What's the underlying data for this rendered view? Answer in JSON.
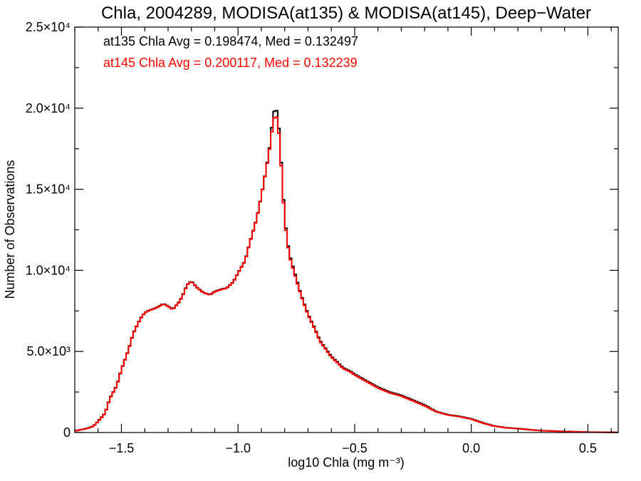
{
  "chart_data": {
    "type": "line",
    "step": true,
    "title": "Chla, 2004289, MODISA(at135) & MODISA(at145), Deep−Water",
    "xlabel": "log10 Chla (mg m⁻³)",
    "ylabel": "Number of Observations",
    "xlim": [
      -1.7,
      0.63
    ],
    "ylim": [
      0,
      25000
    ],
    "xticks": [
      -1.5,
      -1.0,
      -0.5,
      0.0,
      0.5
    ],
    "xtick_labels": [
      "−1.5",
      "−1.0",
      "−0.5",
      "0.0",
      "0.5"
    ],
    "yticks": [
      0,
      5000,
      10000,
      15000,
      20000,
      25000
    ],
    "ytick_labels": [
      "0",
      "5.0×10³",
      "1.0×10⁴",
      "1.5×10⁴",
      "2.0×10⁴",
      "2.5×10⁴"
    ],
    "annotations": [
      {
        "text": "at135 Chla Avg = 0.198474, Med = 0.132497",
        "color": "#000000"
      },
      {
        "text": "at145 Chla Avg = 0.200117, Med = 0.132239",
        "color": "#ff0000"
      }
    ],
    "bin_width": 0.01,
    "x": [
      -1.7,
      -1.65,
      -1.62,
      -1.6,
      -1.57,
      -1.55,
      -1.52,
      -1.5,
      -1.47,
      -1.45,
      -1.42,
      -1.4,
      -1.38,
      -1.35,
      -1.32,
      -1.3,
      -1.28,
      -1.25,
      -1.23,
      -1.22,
      -1.2,
      -1.18,
      -1.15,
      -1.12,
      -1.1,
      -1.07,
      -1.05,
      -1.02,
      -1.0,
      -0.97,
      -0.95,
      -0.92,
      -0.9,
      -0.88,
      -0.86,
      -0.85,
      -0.84,
      -0.83,
      -0.82,
      -0.81,
      -0.8,
      -0.79,
      -0.78,
      -0.77,
      -0.75,
      -0.73,
      -0.7,
      -0.67,
      -0.65,
      -0.62,
      -0.6,
      -0.57,
      -0.55,
      -0.52,
      -0.5,
      -0.45,
      -0.4,
      -0.35,
      -0.3,
      -0.25,
      -0.2,
      -0.15,
      -0.1,
      -0.05,
      0.0,
      0.05,
      0.1,
      0.15,
      0.2,
      0.25,
      0.3,
      0.4,
      0.5,
      0.6,
      0.63
    ],
    "series": [
      {
        "name": "at135",
        "color": "#000000",
        "values": [
          100,
          250,
          400,
          700,
          1200,
          2100,
          2900,
          3900,
          5100,
          6100,
          7000,
          7400,
          7550,
          7700,
          7950,
          7800,
          7600,
          8100,
          8700,
          9100,
          9350,
          9000,
          8650,
          8500,
          8700,
          8850,
          8900,
          9300,
          9850,
          10600,
          11700,
          13200,
          14600,
          16200,
          18000,
          19600,
          20000,
          19700,
          17800,
          15500,
          13200,
          12000,
          11000,
          10500,
          9500,
          8500,
          7300,
          6400,
          5700,
          5100,
          4700,
          4300,
          4000,
          3800,
          3600,
          3200,
          2800,
          2500,
          2300,
          2000,
          1700,
          1300,
          1100,
          1000,
          850,
          600,
          400,
          300,
          250,
          180,
          120,
          70,
          30,
          15,
          10
        ]
      },
      {
        "name": "at145",
        "color": "#ff0000",
        "values": [
          90,
          240,
          390,
          680,
          1180,
          2080,
          2880,
          3880,
          5080,
          6080,
          6980,
          7380,
          7530,
          7680,
          7930,
          7780,
          7580,
          8080,
          8680,
          9080,
          9330,
          8980,
          8630,
          8480,
          8680,
          8830,
          8880,
          9280,
          9830,
          10580,
          11680,
          13180,
          14580,
          16180,
          17900,
          19200,
          19600,
          19300,
          17600,
          15300,
          13050,
          11900,
          10900,
          10400,
          9400,
          8450,
          7250,
          6350,
          5650,
          5050,
          4650,
          4250,
          3950,
          3750,
          3550,
          3150,
          2750,
          2450,
          2250,
          1950,
          1650,
          1280,
          1080,
          980,
          830,
          580,
          390,
          290,
          240,
          170,
          110,
          60,
          25,
          12,
          8
        ]
      }
    ]
  }
}
